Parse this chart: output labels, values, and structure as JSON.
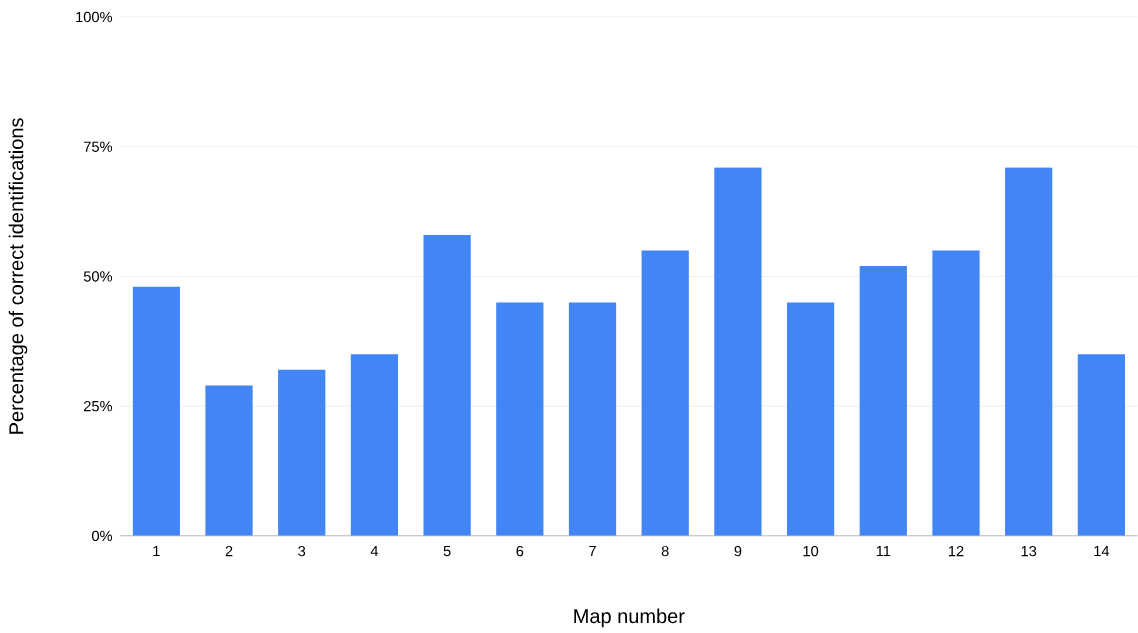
{
  "chart_data": {
    "type": "bar",
    "xlabel": "Map number",
    "ylabel": "Percentage of correct identifications",
    "categories": [
      "1",
      "2",
      "3",
      "4",
      "5",
      "6",
      "7",
      "8",
      "9",
      "10",
      "11",
      "12",
      "13",
      "14"
    ],
    "values": [
      48,
      29,
      32,
      35,
      58,
      45,
      45,
      55,
      71,
      45,
      52,
      55,
      71,
      35
    ],
    "color": "#4285f4",
    "ylim": [
      0,
      100
    ],
    "yticks": [
      {
        "value": 0,
        "label": "0%"
      },
      {
        "value": 25,
        "label": "25%"
      },
      {
        "value": 50,
        "label": "50%"
      },
      {
        "value": 75,
        "label": "75%"
      },
      {
        "value": 100,
        "label": "100%"
      }
    ],
    "grid": "y"
  }
}
